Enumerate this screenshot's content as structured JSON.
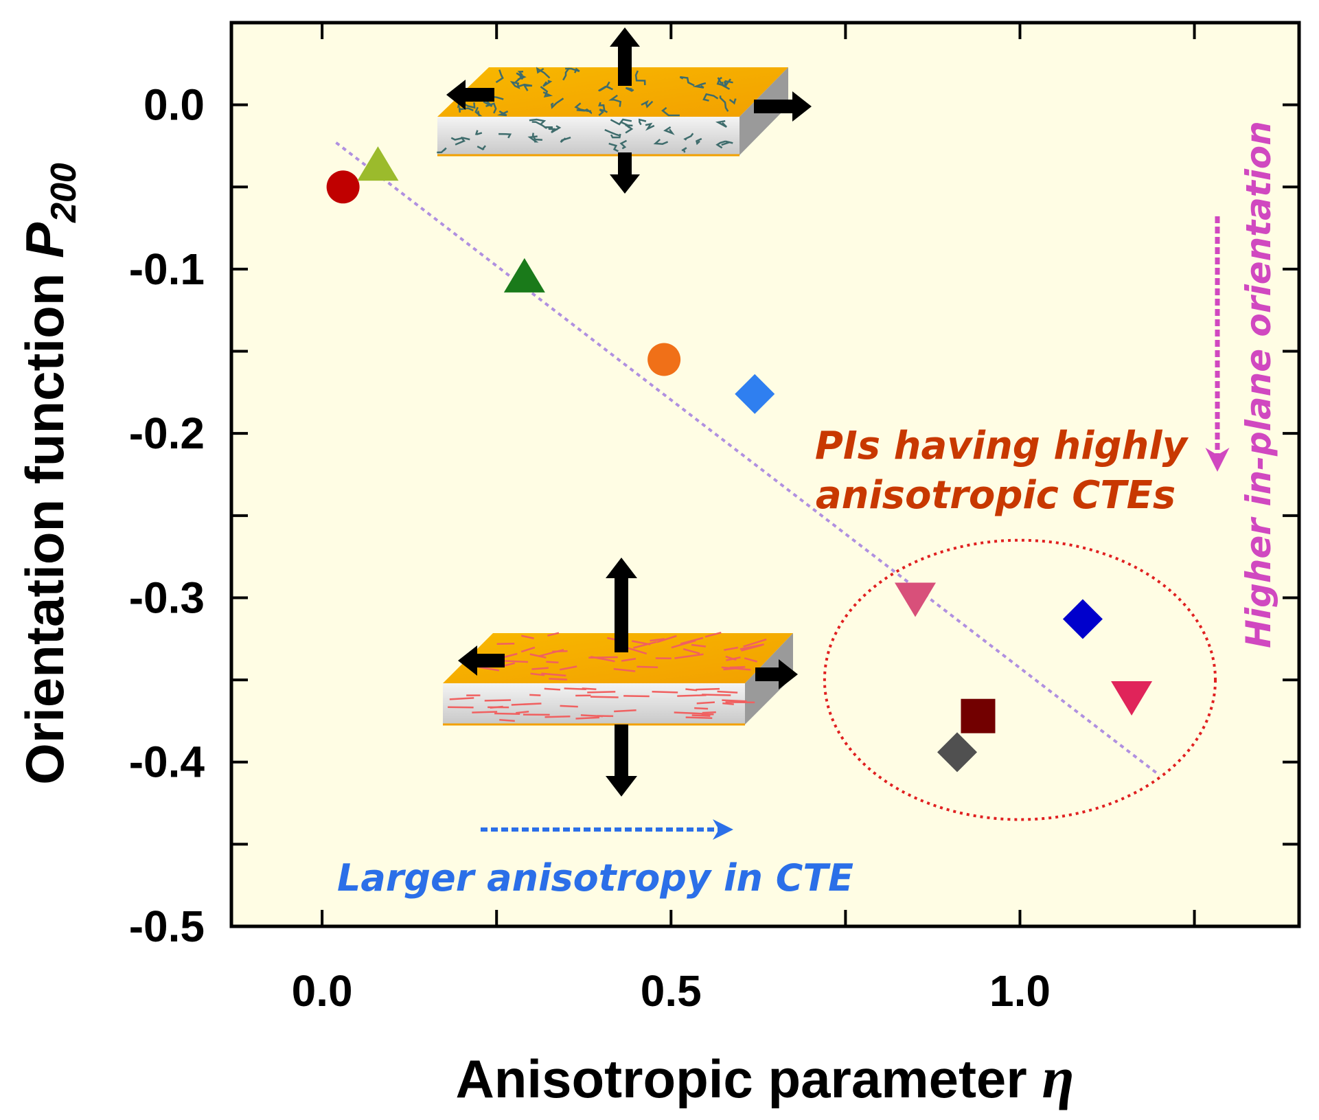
{
  "chart_data": {
    "type": "scatter",
    "xlabel": "Anisotropic parameter",
    "xlabel_symbol": "η",
    "ylabel": "Orientation function",
    "ylabel_symbol": "P",
    "ylabel_subscript": "200",
    "xlim": [
      -0.13,
      1.4
    ],
    "ylim": [
      -0.5,
      0.05
    ],
    "xticks": [
      0.0,
      0.25,
      0.5,
      0.75,
      1.0,
      1.25
    ],
    "xtick_labels": [
      {
        "value": 0.0,
        "label": "0.0"
      },
      {
        "value": 0.5,
        "label": "0.5"
      },
      {
        "value": 1.0,
        "label": "1.0"
      }
    ],
    "yticks": [
      {
        "value": 0.0,
        "label": "0.0"
      },
      {
        "value": -0.05,
        "label": ""
      },
      {
        "value": -0.1,
        "label": "-0.1"
      },
      {
        "value": -0.15,
        "label": ""
      },
      {
        "value": -0.2,
        "label": "-0.2"
      },
      {
        "value": -0.25,
        "label": ""
      },
      {
        "value": -0.3,
        "label": "-0.3"
      },
      {
        "value": -0.35,
        "label": ""
      },
      {
        "value": -0.4,
        "label": "-0.4"
      },
      {
        "value": -0.45,
        "label": ""
      },
      {
        "value": -0.5,
        "label": "-0.5"
      }
    ],
    "grid": false,
    "background_color": "#fffde4",
    "points": [
      {
        "x": 0.03,
        "y": -0.05,
        "marker": "circle",
        "color": "#c00000"
      },
      {
        "x": 0.08,
        "y": -0.037,
        "marker": "triangle-up",
        "color": "#9bbb2c"
      },
      {
        "x": 0.29,
        "y": -0.105,
        "marker": "triangle-up",
        "color": "#1a7a1a"
      },
      {
        "x": 0.49,
        "y": -0.155,
        "marker": "circle",
        "color": "#f07018"
      },
      {
        "x": 0.62,
        "y": -0.176,
        "marker": "diamond",
        "color": "#2f7ff0"
      },
      {
        "x": 0.85,
        "y": -0.3,
        "marker": "triangle-down",
        "color": "#d8507a"
      },
      {
        "x": 0.91,
        "y": -0.394,
        "marker": "diamond",
        "color": "#505050"
      },
      {
        "x": 0.94,
        "y": -0.372,
        "marker": "square",
        "color": "#720000"
      },
      {
        "x": 1.09,
        "y": -0.313,
        "marker": "diamond",
        "color": "#0000cc"
      },
      {
        "x": 1.16,
        "y": -0.36,
        "marker": "triangle-down",
        "color": "#e0245a"
      }
    ],
    "trend_line": {
      "x": [
        0.02,
        1.2
      ],
      "y": [
        -0.023,
        -0.408
      ],
      "style": "dotted",
      "color": "#b090e0"
    },
    "ellipse_region": {
      "center": [
        1.0,
        -0.35
      ],
      "rx": 0.28,
      "ry": 0.085,
      "style": "dotted",
      "color": "#e02020"
    },
    "annotations": {
      "highly_anisotropic_line1": "PIs having highly",
      "highly_anisotropic_line2": "anisotropic CTEs",
      "larger_anisotropy": "Larger anisotropy in CTE",
      "higher_inplane": "Higher in-plane orientation"
    },
    "annotation_colors": {
      "highly_anisotropic": "#c83800",
      "larger_anisotropy": "#2b6fe8",
      "higher_inplane": "#d048c0"
    }
  }
}
